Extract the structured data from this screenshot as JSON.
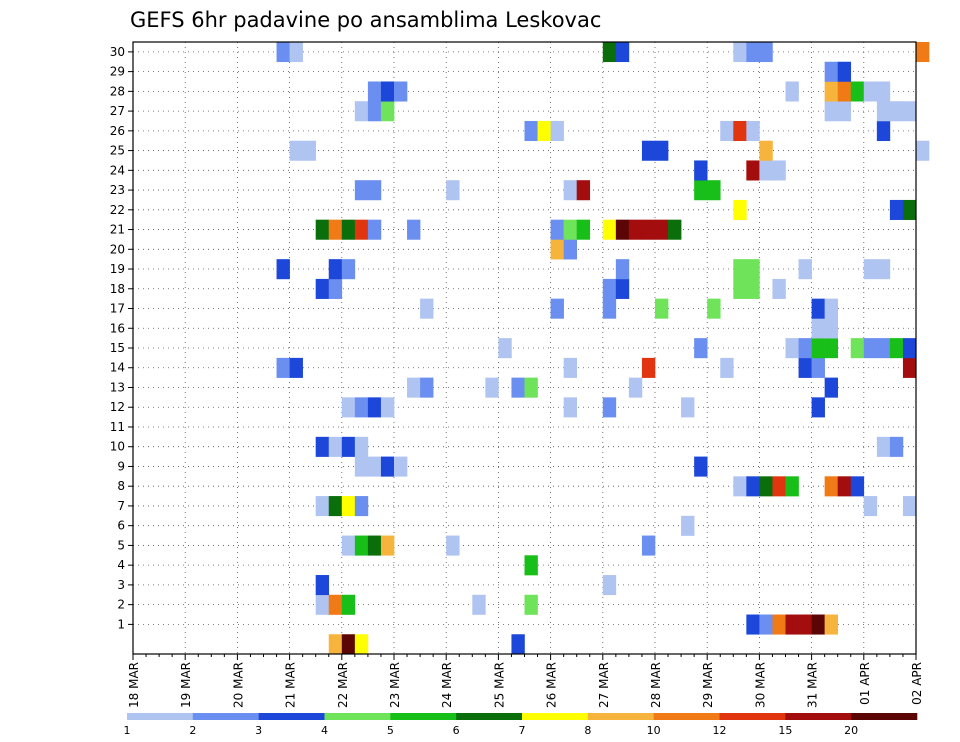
{
  "chart_data": {
    "type": "heatmap",
    "title": "GEFS 6hr padavine po ansamblima Leskovac",
    "xlabel": "",
    "ylabel": "",
    "x_ticks": [
      "18 MAR",
      "19 MAR",
      "20 MAR",
      "21 MAR",
      "22 MAR",
      "23 MAR",
      "24 MAR",
      "25 MAR",
      "26 MAR",
      "27 MAR",
      "28 MAR",
      "29 MAR",
      "30 MAR",
      "31 MAR",
      "01 APR",
      "02 APR"
    ],
    "y_ticks": [
      1,
      2,
      3,
      4,
      5,
      6,
      7,
      8,
      9,
      10,
      11,
      12,
      13,
      14,
      15,
      16,
      17,
      18,
      19,
      20,
      21,
      22,
      23,
      24,
      25,
      26,
      27,
      28,
      29,
      30
    ],
    "x_range": [
      "2018-03-18 00Z",
      "2018-04-02 00Z"
    ],
    "y_range": [
      0,
      30
    ],
    "step_hours": 6,
    "grid": true,
    "colorbar": {
      "labels": [
        "1",
        "2",
        "3",
        "4",
        "5",
        "6",
        "7",
        "8",
        "10",
        "12",
        "15",
        "20"
      ],
      "colors": [
        "#b0c4f2",
        "#6b8ff0",
        "#1c47d9",
        "#6fe35a",
        "#19bf19",
        "#0a6f0a",
        "#ffff00",
        "#f7b43c",
        "#f07a15",
        "#e0350e",
        "#a30d0d",
        "#5c0505"
      ]
    },
    "cells_note": "each row: ensemble member, [time step index (6h from 18 MAR 00Z), color class index 0-11]",
    "members": [
      {
        "member": 0,
        "cells": [
          [
            15,
            7
          ],
          [
            16,
            11
          ],
          [
            17,
            6
          ],
          [
            29,
            2
          ]
        ]
      },
      {
        "member": 1,
        "cells": [
          [
            47,
            2
          ],
          [
            48,
            1
          ],
          [
            49,
            8
          ],
          [
            50,
            10
          ],
          [
            51,
            10
          ],
          [
            52,
            11
          ],
          [
            53,
            7
          ]
        ]
      },
      {
        "member": 2,
        "cells": [
          [
            14,
            0
          ],
          [
            15,
            8
          ],
          [
            16,
            4
          ],
          [
            26,
            0
          ],
          [
            30,
            3
          ]
        ]
      },
      {
        "member": 3,
        "cells": [
          [
            14,
            2
          ],
          [
            36,
            0
          ]
        ]
      },
      {
        "member": 4,
        "cells": [
          [
            30,
            4
          ]
        ]
      },
      {
        "member": 5,
        "cells": [
          [
            16,
            0
          ],
          [
            17,
            4
          ],
          [
            18,
            5
          ],
          [
            19,
            7
          ],
          [
            24,
            0
          ],
          [
            39,
            1
          ]
        ]
      },
      {
        "member": 6,
        "cells": [
          [
            42,
            0
          ]
        ]
      },
      {
        "member": 7,
        "cells": [
          [
            14,
            0
          ],
          [
            15,
            5
          ],
          [
            16,
            6
          ],
          [
            17,
            1
          ],
          [
            56,
            0
          ],
          [
            59,
            0
          ]
        ]
      },
      {
        "member": 8,
        "cells": [
          [
            46,
            0
          ],
          [
            47,
            2
          ],
          [
            48,
            5
          ],
          [
            49,
            9
          ],
          [
            50,
            4
          ],
          [
            53,
            8
          ],
          [
            54,
            10
          ],
          [
            55,
            2
          ]
        ]
      },
      {
        "member": 9,
        "cells": [
          [
            17,
            0
          ],
          [
            18,
            0
          ],
          [
            19,
            2
          ],
          [
            20,
            0
          ],
          [
            43,
            2
          ]
        ]
      },
      {
        "member": 10,
        "cells": [
          [
            14,
            2
          ],
          [
            15,
            0
          ],
          [
            16,
            2
          ],
          [
            17,
            0
          ],
          [
            57,
            0
          ],
          [
            58,
            1
          ]
        ]
      },
      {
        "member": 12,
        "cells": [
          [
            16,
            0
          ],
          [
            17,
            1
          ],
          [
            18,
            2
          ],
          [
            19,
            0
          ],
          [
            33,
            0
          ],
          [
            36,
            1
          ],
          [
            42,
            0
          ],
          [
            52,
            2
          ]
        ]
      },
      {
        "member": 13,
        "cells": [
          [
            21,
            0
          ],
          [
            22,
            1
          ],
          [
            27,
            0
          ],
          [
            29,
            1
          ],
          [
            30,
            3
          ],
          [
            38,
            0
          ],
          [
            53,
            2
          ]
        ]
      },
      {
        "member": 14,
        "cells": [
          [
            11,
            1
          ],
          [
            12,
            2
          ],
          [
            33,
            0
          ],
          [
            39,
            9
          ],
          [
            45,
            0
          ],
          [
            51,
            2
          ],
          [
            52,
            1
          ],
          [
            59,
            10
          ]
        ]
      },
      {
        "member": 15,
        "cells": [
          [
            28,
            0
          ],
          [
            43,
            1
          ],
          [
            50,
            0
          ],
          [
            51,
            1
          ],
          [
            52,
            4
          ],
          [
            53,
            4
          ],
          [
            55,
            3
          ],
          [
            56,
            1
          ],
          [
            57,
            1
          ],
          [
            58,
            4
          ],
          [
            59,
            2
          ]
        ]
      },
      {
        "member": 16,
        "cells": [
          [
            52,
            0
          ],
          [
            53,
            0
          ]
        ]
      },
      {
        "member": 17,
        "cells": [
          [
            22,
            0
          ],
          [
            32,
            1
          ],
          [
            36,
            1
          ],
          [
            40,
            3
          ],
          [
            44,
            3
          ],
          [
            52,
            2
          ],
          [
            53,
            0
          ]
        ]
      },
      {
        "member": 18,
        "cells": [
          [
            14,
            2
          ],
          [
            15,
            1
          ],
          [
            36,
            1
          ],
          [
            37,
            2
          ],
          [
            46,
            3
          ],
          [
            47,
            3
          ],
          [
            49,
            0
          ]
        ]
      },
      {
        "member": 19,
        "cells": [
          [
            11,
            2
          ],
          [
            15,
            2
          ],
          [
            16,
            1
          ],
          [
            37,
            1
          ],
          [
            46,
            3
          ],
          [
            47,
            3
          ],
          [
            51,
            0
          ],
          [
            56,
            0
          ],
          [
            57,
            0
          ]
        ]
      },
      {
        "member": 20,
        "cells": [
          [
            32,
            7
          ],
          [
            33,
            1
          ]
        ]
      },
      {
        "member": 21,
        "cells": [
          [
            14,
            5
          ],
          [
            15,
            8
          ],
          [
            16,
            5
          ],
          [
            17,
            9
          ],
          [
            18,
            1
          ],
          [
            21,
            1
          ],
          [
            32,
            1
          ],
          [
            33,
            3
          ],
          [
            34,
            4
          ],
          [
            36,
            6
          ],
          [
            37,
            11
          ],
          [
            38,
            10
          ],
          [
            39,
            10
          ],
          [
            40,
            10
          ],
          [
            41,
            5
          ]
        ]
      },
      {
        "member": 22,
        "cells": [
          [
            46,
            6
          ],
          [
            58,
            2
          ],
          [
            59,
            5
          ]
        ]
      },
      {
        "member": 23,
        "cells": [
          [
            17,
            1
          ],
          [
            18,
            1
          ],
          [
            24,
            0
          ],
          [
            33,
            0
          ],
          [
            34,
            10
          ],
          [
            43,
            4
          ],
          [
            44,
            4
          ]
        ]
      },
      {
        "member": 24,
        "cells": [
          [
            43,
            2
          ],
          [
            47,
            10
          ],
          [
            48,
            0
          ],
          [
            49,
            0
          ]
        ]
      },
      {
        "member": 25,
        "cells": [
          [
            12,
            0
          ],
          [
            13,
            0
          ],
          [
            39,
            2
          ],
          [
            40,
            2
          ],
          [
            48,
            7
          ],
          [
            60,
            0
          ]
        ]
      },
      {
        "member": 26,
        "cells": [
          [
            30,
            1
          ],
          [
            31,
            6
          ],
          [
            32,
            0
          ],
          [
            45,
            0
          ],
          [
            46,
            9
          ],
          [
            47,
            0
          ],
          [
            57,
            2
          ]
        ]
      },
      {
        "member": 27,
        "cells": [
          [
            17,
            0
          ],
          [
            18,
            1
          ],
          [
            19,
            3
          ],
          [
            53,
            0
          ],
          [
            54,
            0
          ],
          [
            57,
            0
          ],
          [
            58,
            0
          ],
          [
            59,
            0
          ]
        ]
      },
      {
        "member": 28,
        "cells": [
          [
            18,
            1
          ],
          [
            19,
            2
          ],
          [
            20,
            1
          ],
          [
            50,
            0
          ],
          [
            53,
            7
          ],
          [
            54,
            8
          ],
          [
            55,
            4
          ],
          [
            56,
            0
          ],
          [
            57,
            0
          ]
        ]
      },
      {
        "member": 29,
        "cells": [
          [
            53,
            1
          ],
          [
            54,
            2
          ]
        ]
      },
      {
        "member": 30,
        "cells": [
          [
            11,
            1
          ],
          [
            12,
            0
          ],
          [
            36,
            5
          ],
          [
            37,
            2
          ],
          [
            46,
            0
          ],
          [
            47,
            1
          ],
          [
            48,
            1
          ],
          [
            60,
            8
          ]
        ]
      }
    ]
  }
}
